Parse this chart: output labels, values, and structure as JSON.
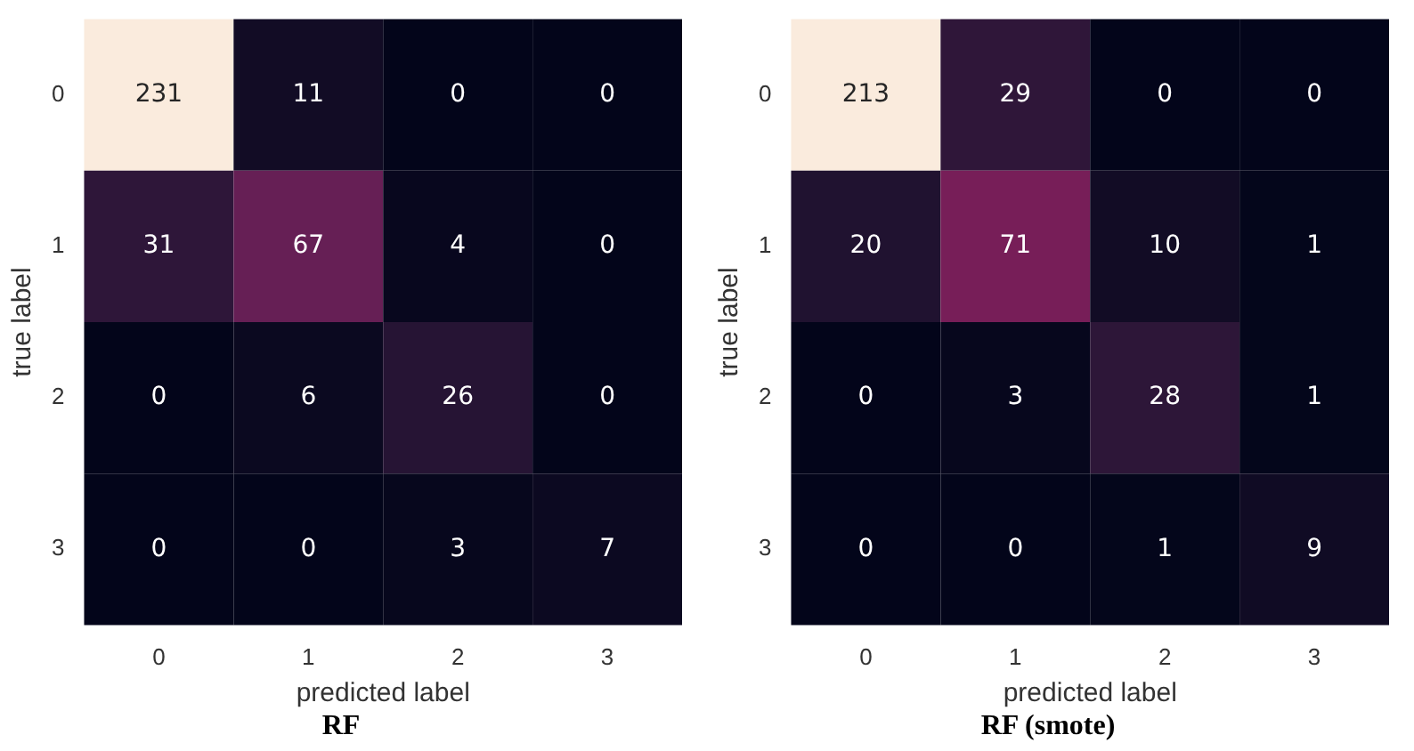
{
  "chart_data": [
    {
      "type": "heatmap",
      "data_labels": true,
      "title": "RF",
      "xlabel": "predicted label",
      "ylabel": "true label",
      "categories": [
        "0",
        "1",
        "2",
        "3"
      ],
      "y_categories": [
        "0",
        "1",
        "2",
        "3"
      ],
      "cells": [
        [
          231,
          11,
          0,
          0
        ],
        [
          31,
          67,
          4,
          0
        ],
        [
          0,
          6,
          26,
          0
        ],
        [
          0,
          0,
          3,
          7
        ]
      ]
    },
    {
      "type": "heatmap",
      "data_labels": true,
      "title": "RF (smote)",
      "xlabel": "predicted label",
      "ylabel": "true label",
      "categories": [
        "0",
        "1",
        "2",
        "3"
      ],
      "y_categories": [
        "0",
        "1",
        "2",
        "3"
      ],
      "cells": [
        [
          213,
          29,
          0,
          0
        ],
        [
          20,
          71,
          10,
          1
        ],
        [
          0,
          3,
          28,
          1
        ],
        [
          0,
          0,
          1,
          9
        ]
      ]
    }
  ]
}
